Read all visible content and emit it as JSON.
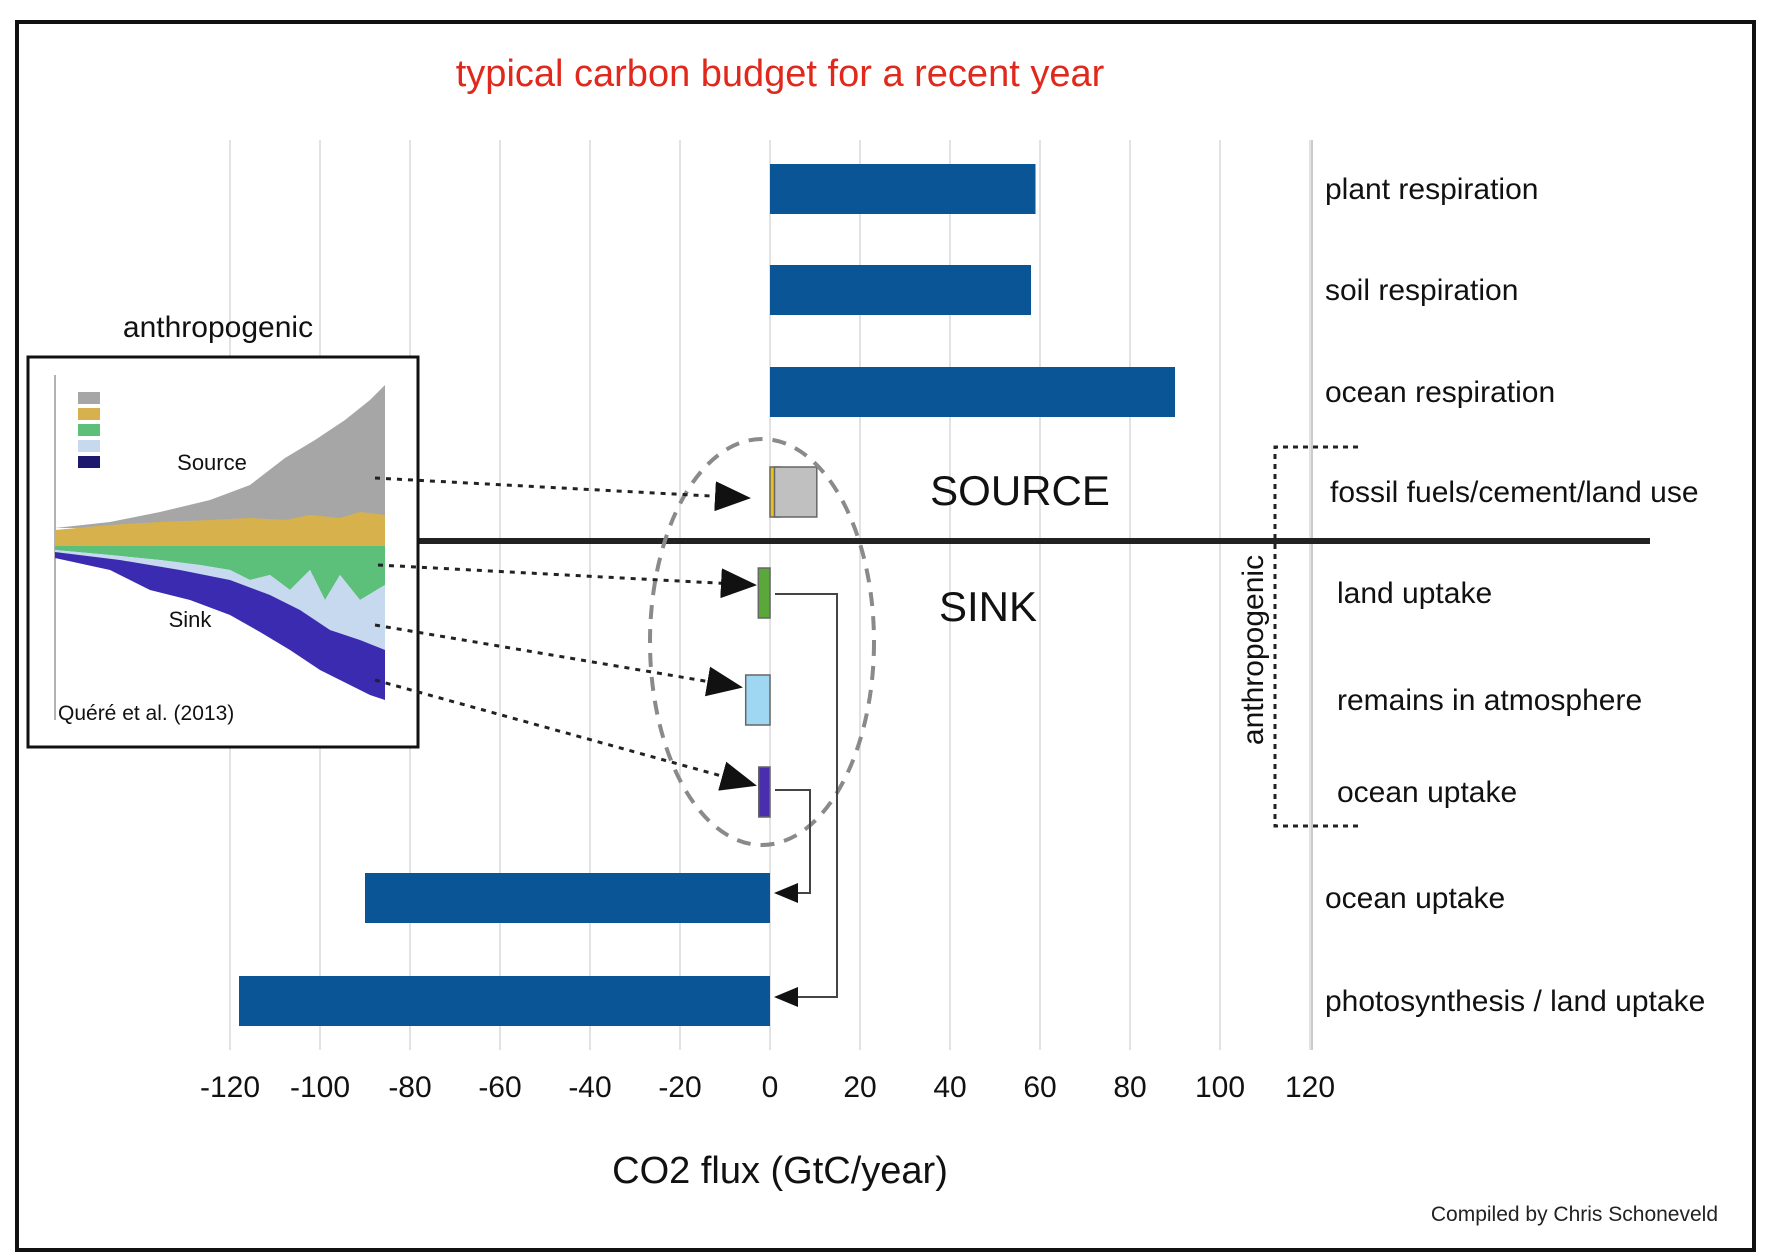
{
  "chart_data": {
    "type": "bar",
    "orientation": "horizontal",
    "title": "typical carbon budget for a recent year",
    "xlabel": "CO2 flux (GtC/year)",
    "ylabel": "",
    "xlim": [
      -120,
      120
    ],
    "xticks": [
      "-120",
      "-100",
      "-80",
      "-60",
      "-40",
      "-20",
      "0",
      "20",
      "40",
      "60",
      "80",
      "100",
      "120"
    ],
    "grid": true,
    "categories": [
      "plant respiration",
      "soil respiration",
      "ocean respiration",
      "fossil fuels/cement/land use",
      "land uptake",
      "remains in atmosphere",
      "ocean uptake",
      "ocean uptake",
      "photosynthesis / land uptake"
    ],
    "values": [
      59,
      58,
      90,
      10.4,
      -2.6,
      -5.4,
      -2.5,
      -90,
      -118
    ],
    "anthropogenic_segments": {
      "fossil fuels/cement/land use": [
        {
          "component": "land use change",
          "value": 1.0,
          "color": "#e8c020"
        },
        {
          "component": "fossil fuels and cement",
          "value": 9.4,
          "color": "#c0c0c0"
        }
      ],
      "land uptake": [
        {
          "component": "land",
          "value": -2.6,
          "color": "#5aa83a"
        }
      ],
      "remains in atmosphere": [
        {
          "component": "atmosphere",
          "value": -5.4,
          "color": "#9fd6f2"
        }
      ],
      "ocean uptake": [
        {
          "component": "ocean",
          "value": -2.5,
          "color": "#4a2eb0"
        }
      ]
    },
    "bar_color": "#0a5595",
    "labels": {
      "source": "SOURCE",
      "sink": "SINK",
      "anthropogenic_side": "anthropogenic"
    }
  },
  "inset": {
    "heading": "anthropogenic",
    "source_label": "Source",
    "sink_label": "Sink",
    "citation": "Quéré et al. (2013)"
  },
  "credit": "Compiled by Chris Schoneveld",
  "colors": {
    "title": "#e0281c",
    "bar": "#0a5595",
    "grid": "#d9d9d9",
    "ellipse": "#8a8a8a"
  }
}
